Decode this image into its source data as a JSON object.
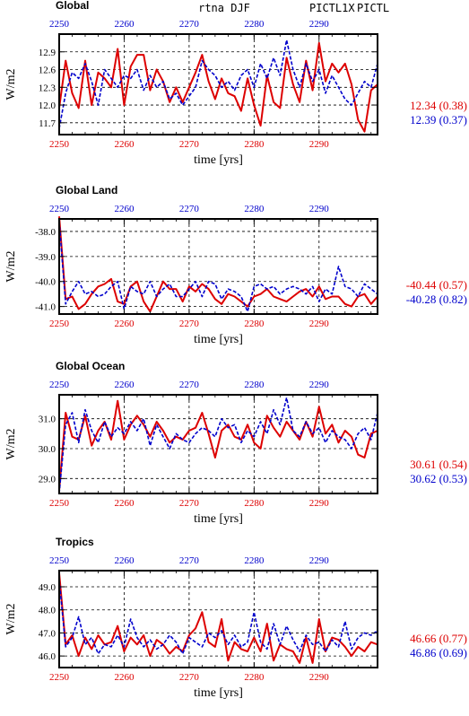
{
  "header": {
    "title": "rtna DJF",
    "series_label_1": "PICTL1X",
    "series_label_2": "PICTL"
  },
  "colors": {
    "red": "#dd0000",
    "blue": "#0000cc",
    "black": "#000000"
  },
  "chart_data": [
    {
      "type": "line",
      "title": "Global",
      "xlabel": "time [yrs]",
      "ylabel": "W/m2",
      "xlim": [
        2250,
        2299
      ],
      "ylim": [
        11.5,
        13.2
      ],
      "yticks": [
        "11.7",
        "12.0",
        "12.3",
        "12.6",
        "12.9"
      ],
      "ytick_values": [
        11.7,
        12.0,
        12.3,
        12.6,
        12.9
      ],
      "xticks": [
        "2250",
        "2260",
        "2270",
        "2280",
        "2290"
      ],
      "xtick_values": [
        2250,
        2260,
        2270,
        2280,
        2290
      ],
      "grid": true,
      "x": [
        2250,
        2251,
        2252,
        2253,
        2254,
        2255,
        2256,
        2257,
        2258,
        2259,
        2260,
        2261,
        2262,
        2263,
        2264,
        2265,
        2266,
        2267,
        2268,
        2269,
        2270,
        2271,
        2272,
        2273,
        2274,
        2275,
        2276,
        2277,
        2278,
        2279,
        2280,
        2281,
        2282,
        2283,
        2284,
        2285,
        2286,
        2287,
        2288,
        2289,
        2290,
        2291,
        2292,
        2293,
        2294,
        2295,
        2296,
        2297,
        2298,
        2299
      ],
      "series": [
        {
          "name": "PICTL1X",
          "color": "#dd0000",
          "values": [
            11.95,
            12.75,
            12.2,
            11.95,
            12.75,
            12.0,
            12.55,
            12.45,
            12.3,
            12.95,
            12.0,
            12.65,
            12.85,
            12.85,
            12.25,
            12.6,
            12.4,
            12.05,
            12.3,
            12.05,
            12.3,
            12.55,
            12.85,
            12.4,
            12.1,
            12.45,
            12.2,
            12.15,
            11.9,
            12.45,
            12.0,
            11.65,
            12.5,
            12.05,
            11.95,
            12.8,
            12.35,
            12.05,
            12.75,
            12.25,
            13.05,
            12.4,
            12.7,
            12.55,
            12.7,
            12.35,
            11.75,
            11.55,
            12.25,
            12.35
          ]
        },
        {
          "name": "PICTL",
          "color": "#0000cc",
          "values": [
            11.6,
            12.2,
            12.55,
            12.45,
            12.7,
            12.4,
            12.0,
            12.6,
            12.45,
            12.3,
            12.5,
            12.45,
            12.6,
            12.25,
            12.5,
            12.3,
            12.4,
            12.1,
            12.2,
            12.0,
            12.15,
            12.3,
            12.75,
            12.6,
            12.5,
            12.3,
            12.4,
            12.25,
            12.5,
            12.6,
            12.3,
            12.7,
            12.45,
            12.8,
            12.5,
            13.1,
            12.6,
            12.3,
            12.7,
            12.4,
            12.6,
            12.2,
            12.5,
            12.3,
            12.1,
            12.0,
            12.2,
            12.4,
            12.3,
            12.7
          ]
        }
      ],
      "stats": [
        {
          "text": "12.34 (0.38)",
          "color": "#dd0000"
        },
        {
          "text": "12.39 (0.37)",
          "color": "#0000cc"
        }
      ]
    },
    {
      "type": "line",
      "title": "Global Land",
      "xlabel": "time [yrs]",
      "ylabel": "W/m2",
      "xlim": [
        2250,
        2299
      ],
      "ylim": [
        -41.3,
        -37.5
      ],
      "yticks": [
        "-38.0",
        "-39.0",
        "-40.0",
        "-41.0"
      ],
      "ytick_values": [
        -38.0,
        -39.0,
        -40.0,
        -41.0
      ],
      "xticks": [
        "2250",
        "2260",
        "2270",
        "2280",
        "2290"
      ],
      "xtick_values": [
        2250,
        2260,
        2270,
        2280,
        2290
      ],
      "grid": true,
      "x": [
        2250,
        2251,
        2252,
        2253,
        2254,
        2255,
        2256,
        2257,
        2258,
        2259,
        2260,
        2261,
        2262,
        2263,
        2264,
        2265,
        2266,
        2267,
        2268,
        2269,
        2270,
        2271,
        2272,
        2273,
        2274,
        2275,
        2276,
        2277,
        2278,
        2279,
        2280,
        2281,
        2282,
        2283,
        2284,
        2285,
        2286,
        2287,
        2288,
        2289,
        2290,
        2291,
        2292,
        2293,
        2294,
        2295,
        2296,
        2297,
        2298,
        2299
      ],
      "series": [
        {
          "name": "PICTL1X",
          "color": "#dd0000",
          "values": [
            -37.4,
            -40.7,
            -40.6,
            -41.1,
            -40.9,
            -40.5,
            -40.2,
            -40.1,
            -39.9,
            -40.8,
            -40.9,
            -40.2,
            -40.0,
            -40.8,
            -41.2,
            -40.6,
            -40.0,
            -40.3,
            -40.3,
            -40.8,
            -40.2,
            -40.4,
            -40.1,
            -40.3,
            -40.7,
            -40.9,
            -40.5,
            -40.6,
            -40.8,
            -41.0,
            -40.6,
            -40.5,
            -40.3,
            -40.6,
            -40.7,
            -40.8,
            -40.6,
            -40.4,
            -40.3,
            -40.6,
            -40.2,
            -40.7,
            -40.6,
            -40.6,
            -40.9,
            -41.0,
            -40.6,
            -40.5,
            -40.9,
            -40.6
          ]
        },
        {
          "name": "PICTL",
          "color": "#0000cc",
          "values": [
            -37.6,
            -40.9,
            -40.4,
            -40.0,
            -40.5,
            -40.4,
            -40.6,
            -40.5,
            -40.2,
            -40.0,
            -41.1,
            -40.2,
            -40.4,
            -40.5,
            -40.0,
            -40.6,
            -40.3,
            -40.1,
            -40.6,
            -40.6,
            -40.3,
            -40.0,
            -40.6,
            -40.0,
            -40.1,
            -40.7,
            -40.3,
            -40.4,
            -40.6,
            -41.2,
            -40.2,
            -40.1,
            -40.3,
            -40.2,
            -40.5,
            -40.3,
            -40.2,
            -40.3,
            -40.5,
            -40.2,
            -40.8,
            -40.3,
            -40.5,
            -39.4,
            -40.2,
            -40.3,
            -40.6,
            -40.1,
            -40.3,
            -40.5
          ]
        }
      ],
      "stats": [
        {
          "text": "-40.44 (0.57)",
          "color": "#dd0000"
        },
        {
          "text": "-40.28 (0.82)",
          "color": "#0000cc"
        }
      ]
    },
    {
      "type": "line",
      "title": "Global Ocean",
      "xlabel": "time [yrs]",
      "ylabel": "W/m2",
      "xlim": [
        2250,
        2299
      ],
      "ylim": [
        28.5,
        31.8
      ],
      "yticks": [
        "29.0",
        "30.0",
        "31.0"
      ],
      "ytick_values": [
        29.0,
        30.0,
        31.0
      ],
      "xticks": [
        "2250",
        "2260",
        "2270",
        "2280",
        "2290"
      ],
      "xtick_values": [
        2250,
        2260,
        2270,
        2280,
        2290
      ],
      "grid": true,
      "x": [
        2250,
        2251,
        2252,
        2253,
        2254,
        2255,
        2256,
        2257,
        2258,
        2259,
        2260,
        2261,
        2262,
        2263,
        2264,
        2265,
        2266,
        2267,
        2268,
        2269,
        2270,
        2271,
        2272,
        2273,
        2274,
        2275,
        2276,
        2277,
        2278,
        2279,
        2280,
        2281,
        2282,
        2283,
        2284,
        2285,
        2286,
        2287,
        2288,
        2289,
        2290,
        2291,
        2292,
        2293,
        2294,
        2295,
        2296,
        2297,
        2298,
        2299
      ],
      "series": [
        {
          "name": "PICTL1X",
          "color": "#dd0000",
          "values": [
            28.6,
            31.2,
            30.4,
            30.3,
            31.1,
            30.1,
            30.6,
            30.9,
            30.3,
            31.6,
            30.3,
            30.8,
            31.1,
            30.8,
            30.4,
            30.9,
            30.6,
            30.2,
            30.4,
            30.3,
            30.6,
            30.7,
            31.2,
            30.5,
            29.7,
            30.6,
            30.8,
            30.4,
            30.3,
            30.8,
            30.2,
            30.0,
            31.1,
            30.7,
            30.4,
            30.9,
            30.6,
            30.3,
            30.9,
            30.4,
            31.4,
            30.5,
            30.8,
            30.2,
            30.6,
            30.4,
            29.8,
            29.7,
            30.5,
            30.6
          ]
        },
        {
          "name": "PICTL",
          "color": "#0000cc",
          "values": [
            28.5,
            30.8,
            31.2,
            30.2,
            31.3,
            30.6,
            30.2,
            30.9,
            30.4,
            30.7,
            30.5,
            30.9,
            30.6,
            31.0,
            30.1,
            30.8,
            30.4,
            30.0,
            30.5,
            30.3,
            30.2,
            30.5,
            30.7,
            30.6,
            30.4,
            31.0,
            30.7,
            30.8,
            30.2,
            30.6,
            30.4,
            30.9,
            30.5,
            31.3,
            30.8,
            31.7,
            30.6,
            30.4,
            30.9,
            30.5,
            30.7,
            30.2,
            30.6,
            30.4,
            30.3,
            30.0,
            30.5,
            30.7,
            30.3,
            31.2
          ]
        }
      ],
      "stats": [
        {
          "text": "30.61 (0.54)",
          "color": "#dd0000"
        },
        {
          "text": "30.62 (0.53)",
          "color": "#0000cc"
        }
      ]
    },
    {
      "type": "line",
      "title": "Tropics",
      "xlabel": "time [yrs]",
      "ylabel": "W/m2",
      "xlim": [
        2250,
        2299
      ],
      "ylim": [
        45.5,
        49.7
      ],
      "yticks": [
        "46.0",
        "47.0",
        "48.0",
        "49.0"
      ],
      "ytick_values": [
        46.0,
        47.0,
        48.0,
        49.0
      ],
      "xticks": [
        "2250",
        "2260",
        "2270",
        "2280",
        "2290"
      ],
      "xtick_values": [
        2250,
        2260,
        2270,
        2280,
        2290
      ],
      "grid": true,
      "x": [
        2250,
        2251,
        2252,
        2253,
        2254,
        2255,
        2256,
        2257,
        2258,
        2259,
        2260,
        2261,
        2262,
        2263,
        2264,
        2265,
        2266,
        2267,
        2268,
        2269,
        2270,
        2271,
        2272,
        2273,
        2274,
        2275,
        2276,
        2277,
        2278,
        2279,
        2280,
        2281,
        2282,
        2283,
        2284,
        2285,
        2286,
        2287,
        2288,
        2289,
        2290,
        2291,
        2292,
        2293,
        2294,
        2295,
        2296,
        2297,
        2298,
        2299
      ],
      "series": [
        {
          "name": "PICTL1X",
          "color": "#dd0000",
          "values": [
            49.6,
            46.5,
            46.9,
            46.0,
            46.8,
            46.3,
            46.9,
            46.5,
            46.6,
            47.3,
            46.2,
            46.8,
            46.5,
            46.9,
            46.0,
            46.7,
            46.5,
            46.1,
            46.4,
            46.2,
            46.9,
            47.2,
            47.9,
            46.6,
            46.4,
            47.6,
            45.8,
            46.6,
            46.3,
            46.2,
            46.8,
            46.2,
            47.4,
            45.8,
            46.5,
            46.3,
            46.2,
            45.7,
            46.8,
            45.7,
            47.6,
            46.2,
            46.8,
            46.7,
            46.4,
            46.0,
            46.4,
            46.2,
            46.6,
            46.5
          ]
        },
        {
          "name": "PICTL",
          "color": "#0000cc",
          "values": [
            49.3,
            46.4,
            46.8,
            47.7,
            46.5,
            46.8,
            46.1,
            46.5,
            46.4,
            46.9,
            46.4,
            47.6,
            46.8,
            46.4,
            46.7,
            46.3,
            46.5,
            46.9,
            46.6,
            46.1,
            46.8,
            46.6,
            46.4,
            47.0,
            46.8,
            47.1,
            46.5,
            46.9,
            46.4,
            46.6,
            47.9,
            46.6,
            46.3,
            47.4,
            46.5,
            47.3,
            46.7,
            46.2,
            46.9,
            46.5,
            46.6,
            46.2,
            46.7,
            46.4,
            47.5,
            46.3,
            46.8,
            47.0,
            46.9,
            47.1
          ]
        }
      ],
      "stats": [
        {
          "text": "46.66 (0.77)",
          "color": "#dd0000"
        },
        {
          "text": "46.86 (0.69)",
          "color": "#0000cc"
        }
      ]
    }
  ]
}
